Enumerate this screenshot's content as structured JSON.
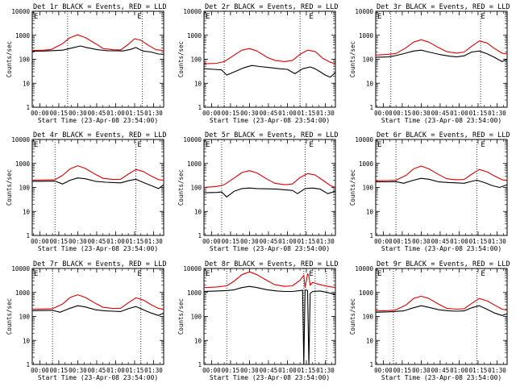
{
  "chart_data": [
    {
      "type": "line",
      "title": "Det 1r BLACK = Events, RED = LLD",
      "xlabel": "Start Time (23-Apr-08 23:54:00)",
      "ylabel": "Counts/sec",
      "x_ticks": [
        "00:00",
        "00:15",
        "00:30",
        "00:45",
        "01:00",
        "01:15",
        "01:30"
      ],
      "y_ticks": [
        "1",
        "10",
        "100",
        "1000",
        "10000"
      ],
      "ylim": [
        1,
        10000
      ],
      "xlim_min": [
        -6,
        98
      ],
      "marker_label": "E",
      "vlines_min": [
        22,
        81
      ],
      "series": [
        {
          "name": "Events",
          "color": "#000000",
          "x": [
            -6,
            3,
            9,
            18,
            26,
            32,
            38,
            46,
            54,
            60,
            66,
            72,
            76,
            80,
            82,
            88,
            94,
            98
          ],
          "values": [
            215,
            220,
            228,
            240,
            300,
            360,
            300,
            250,
            225,
            225,
            222,
            260,
            310,
            240,
            220,
            200,
            165,
            160
          ]
        },
        {
          "name": "LLD",
          "color": "#e00000",
          "x": [
            -6,
            3,
            9,
            18,
            24,
            30,
            36,
            44,
            50,
            58,
            64,
            70,
            75,
            80,
            86,
            92,
            98
          ],
          "values": [
            230,
            240,
            255,
            450,
            800,
            1040,
            800,
            450,
            280,
            250,
            245,
            420,
            720,
            620,
            380,
            250,
            230
          ]
        }
      ]
    },
    {
      "type": "line",
      "title": "Det 2r BLACK = Events, RED = LLD",
      "xlabel": "Start Time (23-Apr-08 23:54:00)",
      "ylabel": "Counts/sec",
      "x_ticks": [
        "00:00",
        "00:15",
        "00:30",
        "00:45",
        "01:00",
        "01:15",
        "01:30"
      ],
      "y_ticks": [
        "1",
        "10",
        "100",
        "1000",
        "10000"
      ],
      "ylim": [
        1,
        10000
      ],
      "xlim_min": [
        -6,
        98
      ],
      "marker_label": "E",
      "vlines_min": [
        10,
        70
      ],
      "series": [
        {
          "name": "Events",
          "color": "#000000",
          "x": [
            -6,
            2,
            8,
            12,
            18,
            26,
            32,
            38,
            46,
            54,
            60,
            66,
            72,
            78,
            82,
            86,
            90,
            94,
            98
          ],
          "values": [
            40,
            38,
            36,
            22,
            30,
            45,
            55,
            50,
            45,
            40,
            38,
            25,
            40,
            48,
            40,
            30,
            22,
            18,
            28
          ]
        },
        {
          "name": "LLD",
          "color": "#e00000",
          "x": [
            -6,
            4,
            10,
            18,
            24,
            30,
            36,
            44,
            50,
            58,
            64,
            70,
            76,
            82,
            88,
            94,
            98
          ],
          "values": [
            65,
            68,
            80,
            150,
            240,
            280,
            220,
            120,
            90,
            80,
            90,
            160,
            240,
            210,
            110,
            75,
            65
          ]
        }
      ]
    },
    {
      "type": "line",
      "title": "Det 3r BLACK = Events, RED = LLD",
      "xlabel": "Start Time (23-Apr-08 23:54:00)",
      "ylabel": "Counts/sec",
      "x_ticks": [
        "00:00",
        "00:15",
        "00:30",
        "00:45",
        "01:00",
        "01:15",
        "01:30"
      ],
      "y_ticks": [
        "1",
        "10",
        "100",
        "1000",
        "10000"
      ],
      "ylim": [
        1,
        10000
      ],
      "xlim_min": [
        -6,
        98
      ],
      "marker_label": "E",
      "vlines_min": [
        6,
        77
      ],
      "series": [
        {
          "name": "Events",
          "color": "#000000",
          "x": [
            -6,
            4,
            8,
            16,
            24,
            30,
            36,
            44,
            52,
            58,
            64,
            70,
            76,
            82,
            88,
            94,
            98
          ],
          "values": [
            120,
            125,
            135,
            170,
            220,
            240,
            200,
            160,
            135,
            125,
            140,
            200,
            220,
            170,
            120,
            80,
            100
          ]
        },
        {
          "name": "LLD",
          "color": "#e00000",
          "x": [
            -6,
            4,
            10,
            18,
            24,
            30,
            36,
            44,
            50,
            58,
            64,
            70,
            76,
            82,
            88,
            94,
            98
          ],
          "values": [
            150,
            160,
            175,
            300,
            520,
            650,
            520,
            300,
            210,
            180,
            200,
            350,
            580,
            480,
            280,
            180,
            165
          ]
        }
      ]
    },
    {
      "type": "line",
      "title": "Det 4r BLACK = Events, RED = LLD",
      "xlabel": "Start Time (23-Apr-08 23:54:00)",
      "ylabel": "Counts/sec",
      "x_ticks": [
        "00:00",
        "00:15",
        "00:30",
        "00:45",
        "01:00",
        "01:15",
        "01:30"
      ],
      "y_ticks": [
        "1",
        "10",
        "100",
        "1000",
        "10000"
      ],
      "ylim": [
        1,
        10000
      ],
      "xlim_min": [
        -6,
        98
      ],
      "marker_label": "E",
      "vlines_min": [
        12,
        76
      ],
      "series": [
        {
          "name": "Events",
          "color": "#000000",
          "x": [
            -6,
            4,
            12,
            18,
            24,
            30,
            36,
            44,
            52,
            58,
            64,
            70,
            76,
            82,
            88,
            94,
            98
          ],
          "values": [
            180,
            182,
            185,
            140,
            200,
            250,
            230,
            180,
            165,
            160,
            155,
            190,
            220,
            160,
            120,
            90,
            130
          ]
        },
        {
          "name": "LLD",
          "color": "#e00000",
          "x": [
            -6,
            4,
            12,
            18,
            24,
            30,
            36,
            44,
            50,
            58,
            64,
            70,
            76,
            82,
            88,
            94,
            98
          ],
          "values": [
            200,
            205,
            210,
            320,
            600,
            800,
            620,
            350,
            240,
            215,
            220,
            360,
            560,
            460,
            300,
            210,
            200
          ]
        }
      ]
    },
    {
      "type": "line",
      "title": "Det 5r BLACK = Events, RED = LLD",
      "xlabel": "Start Time (23-Apr-08 23:54:00)",
      "ylabel": "Counts/sec",
      "x_ticks": [
        "00:00",
        "00:15",
        "00:30",
        "00:45",
        "01:00",
        "01:15",
        "01:30"
      ],
      "y_ticks": [
        "1",
        "10",
        "100",
        "1000",
        "10000"
      ],
      "ylim": [
        1,
        10000
      ],
      "xlim_min": [
        -6,
        98
      ],
      "marker_label": "E",
      "vlines_min": [
        8,
        74
      ],
      "series": [
        {
          "name": "Events",
          "color": "#000000",
          "x": [
            -6,
            4,
            8,
            12,
            18,
            24,
            30,
            36,
            44,
            52,
            58,
            64,
            68,
            74,
            80,
            86,
            92,
            98
          ],
          "values": [
            60,
            62,
            65,
            40,
            70,
            90,
            95,
            90,
            88,
            85,
            80,
            75,
            55,
            90,
            95,
            85,
            55,
            70
          ]
        },
        {
          "name": "LLD",
          "color": "#e00000",
          "x": [
            -6,
            4,
            10,
            18,
            24,
            30,
            36,
            44,
            50,
            58,
            64,
            70,
            76,
            82,
            88,
            94,
            98
          ],
          "values": [
            100,
            110,
            130,
            250,
            420,
            500,
            400,
            220,
            150,
            130,
            140,
            260,
            380,
            330,
            200,
            120,
            100
          ]
        }
      ]
    },
    {
      "type": "line",
      "title": "Det 6r BLACK = Events, RED = LLD",
      "xlabel": "Start Time (23-Apr-08 23:54:00)",
      "ylabel": "Counts/sec",
      "x_ticks": [
        "00:00",
        "00:15",
        "00:30",
        "00:45",
        "01:00",
        "01:15",
        "01:30"
      ],
      "y_ticks": [
        "1",
        "10",
        "100",
        "1000",
        "10000"
      ],
      "ylim": [
        1,
        10000
      ],
      "xlim_min": [
        -6,
        98
      ],
      "marker_label": "E",
      "vlines_min": [
        10,
        74
      ],
      "series": [
        {
          "name": "Events",
          "color": "#000000",
          "x": [
            -6,
            4,
            10,
            16,
            24,
            30,
            36,
            44,
            52,
            58,
            64,
            70,
            74,
            80,
            86,
            92,
            98
          ],
          "values": [
            170,
            172,
            175,
            150,
            200,
            240,
            220,
            170,
            160,
            155,
            150,
            180,
            200,
            160,
            120,
            100,
            130
          ]
        },
        {
          "name": "LLD",
          "color": "#e00000",
          "x": [
            -6,
            4,
            10,
            18,
            24,
            30,
            36,
            44,
            50,
            58,
            64,
            70,
            76,
            82,
            88,
            94,
            98
          ],
          "values": [
            190,
            195,
            200,
            320,
            600,
            780,
            600,
            340,
            230,
            210,
            215,
            360,
            560,
            450,
            300,
            210,
            195
          ]
        }
      ]
    },
    {
      "type": "line",
      "title": "Det 7r BLACK = Events, RED = LLD",
      "xlabel": "Start Time (23-Apr-08 23:54:00)",
      "ylabel": "Counts/sec",
      "x_ticks": [
        "00:00",
        "00:15",
        "00:30",
        "00:45",
        "01:00",
        "01:15",
        "01:30"
      ],
      "y_ticks": [
        "1",
        "10",
        "100",
        "1000",
        "10000"
      ],
      "ylim": [
        1,
        10000
      ],
      "xlim_min": [
        -6,
        98
      ],
      "marker_label": "E",
      "vlines_min": [
        10,
        80
      ],
      "series": [
        {
          "name": "Events",
          "color": "#000000",
          "x": [
            -6,
            4,
            10,
            16,
            24,
            30,
            36,
            44,
            52,
            58,
            64,
            70,
            76,
            82,
            88,
            94,
            98
          ],
          "values": [
            175,
            178,
            180,
            150,
            220,
            280,
            250,
            190,
            170,
            165,
            160,
            210,
            260,
            190,
            140,
            110,
            140
          ]
        },
        {
          "name": "LLD",
          "color": "#e00000",
          "x": [
            -6,
            4,
            10,
            18,
            24,
            30,
            36,
            44,
            50,
            58,
            64,
            70,
            76,
            82,
            88,
            94,
            98
          ],
          "values": [
            200,
            205,
            210,
            330,
            620,
            800,
            620,
            350,
            240,
            215,
            220,
            370,
            600,
            480,
            310,
            215,
            200
          ]
        }
      ]
    },
    {
      "type": "line",
      "title": "Det 8r BLACK = Events, RED = LLD",
      "xlabel": "Start Time (23-Apr-08 23:54:00)",
      "ylabel": "Counts/sec",
      "x_ticks": [
        "00:00",
        "00:15",
        "00:30",
        "00:45",
        "01:00",
        "01:15",
        "01:30"
      ],
      "y_ticks": [
        "1",
        "10",
        "100",
        "1000",
        "10000"
      ],
      "ylim": [
        1,
        10000
      ],
      "xlim_min": [
        -6,
        98
      ],
      "marker_label": "E",
      "vlines_min": [
        12,
        73,
        82,
        91
      ],
      "series": [
        {
          "name": "Events",
          "color": "#000000",
          "x": [
            -6,
            4,
            12,
            18,
            24,
            30,
            36,
            44,
            52,
            58,
            64,
            70,
            72,
            73,
            74,
            76,
            77,
            78,
            80,
            86,
            92,
            98
          ],
          "values": [
            1100,
            1150,
            1200,
            1300,
            1600,
            1800,
            1600,
            1300,
            1150,
            1100,
            1100,
            1200,
            1250,
            1,
            1300,
            1200,
            1,
            900,
            1100,
            1150,
            1000,
            800
          ]
        },
        {
          "name": "LLD",
          "color": "#e00000",
          "x": [
            -6,
            4,
            12,
            18,
            24,
            30,
            36,
            44,
            50,
            58,
            64,
            70,
            73,
            74,
            76,
            77,
            78,
            80,
            86,
            92,
            98
          ],
          "values": [
            1600,
            1700,
            1900,
            3000,
            5500,
            7200,
            5500,
            3100,
            2100,
            1800,
            1900,
            3200,
            5200,
            1600,
            6000,
            5000,
            2000,
            2600,
            2100,
            1800,
            1600
          ]
        }
      ]
    },
    {
      "type": "line",
      "title": "Det 9r BLACK = Events, RED = LLD",
      "xlabel": "Start Time (23-Apr-08 23:54:00)",
      "ylabel": "Counts/sec",
      "x_ticks": [
        "00:00",
        "00:15",
        "00:30",
        "00:45",
        "01:00",
        "01:15",
        "01:30"
      ],
      "y_ticks": [
        "1",
        "10",
        "100",
        "1000",
        "10000"
      ],
      "ylim": [
        1,
        10000
      ],
      "xlim_min": [
        -6,
        98
      ],
      "marker_label": "E",
      "vlines_min": [
        8,
        74
      ],
      "series": [
        {
          "name": "Events",
          "color": "#000000",
          "x": [
            -6,
            4,
            8,
            16,
            24,
            30,
            36,
            44,
            52,
            58,
            64,
            70,
            76,
            82,
            88,
            94,
            98
          ],
          "values": [
            150,
            155,
            160,
            170,
            230,
            280,
            240,
            190,
            170,
            165,
            170,
            230,
            280,
            200,
            140,
            110,
            130
          ]
        },
        {
          "name": "LLD",
          "color": "#e00000",
          "x": [
            -6,
            4,
            10,
            18,
            24,
            30,
            36,
            44,
            50,
            58,
            64,
            70,
            76,
            82,
            88,
            94,
            98
          ],
          "values": [
            170,
            175,
            190,
            300,
            560,
            700,
            560,
            320,
            220,
            200,
            210,
            350,
            560,
            450,
            300,
            200,
            185
          ]
        }
      ]
    }
  ]
}
